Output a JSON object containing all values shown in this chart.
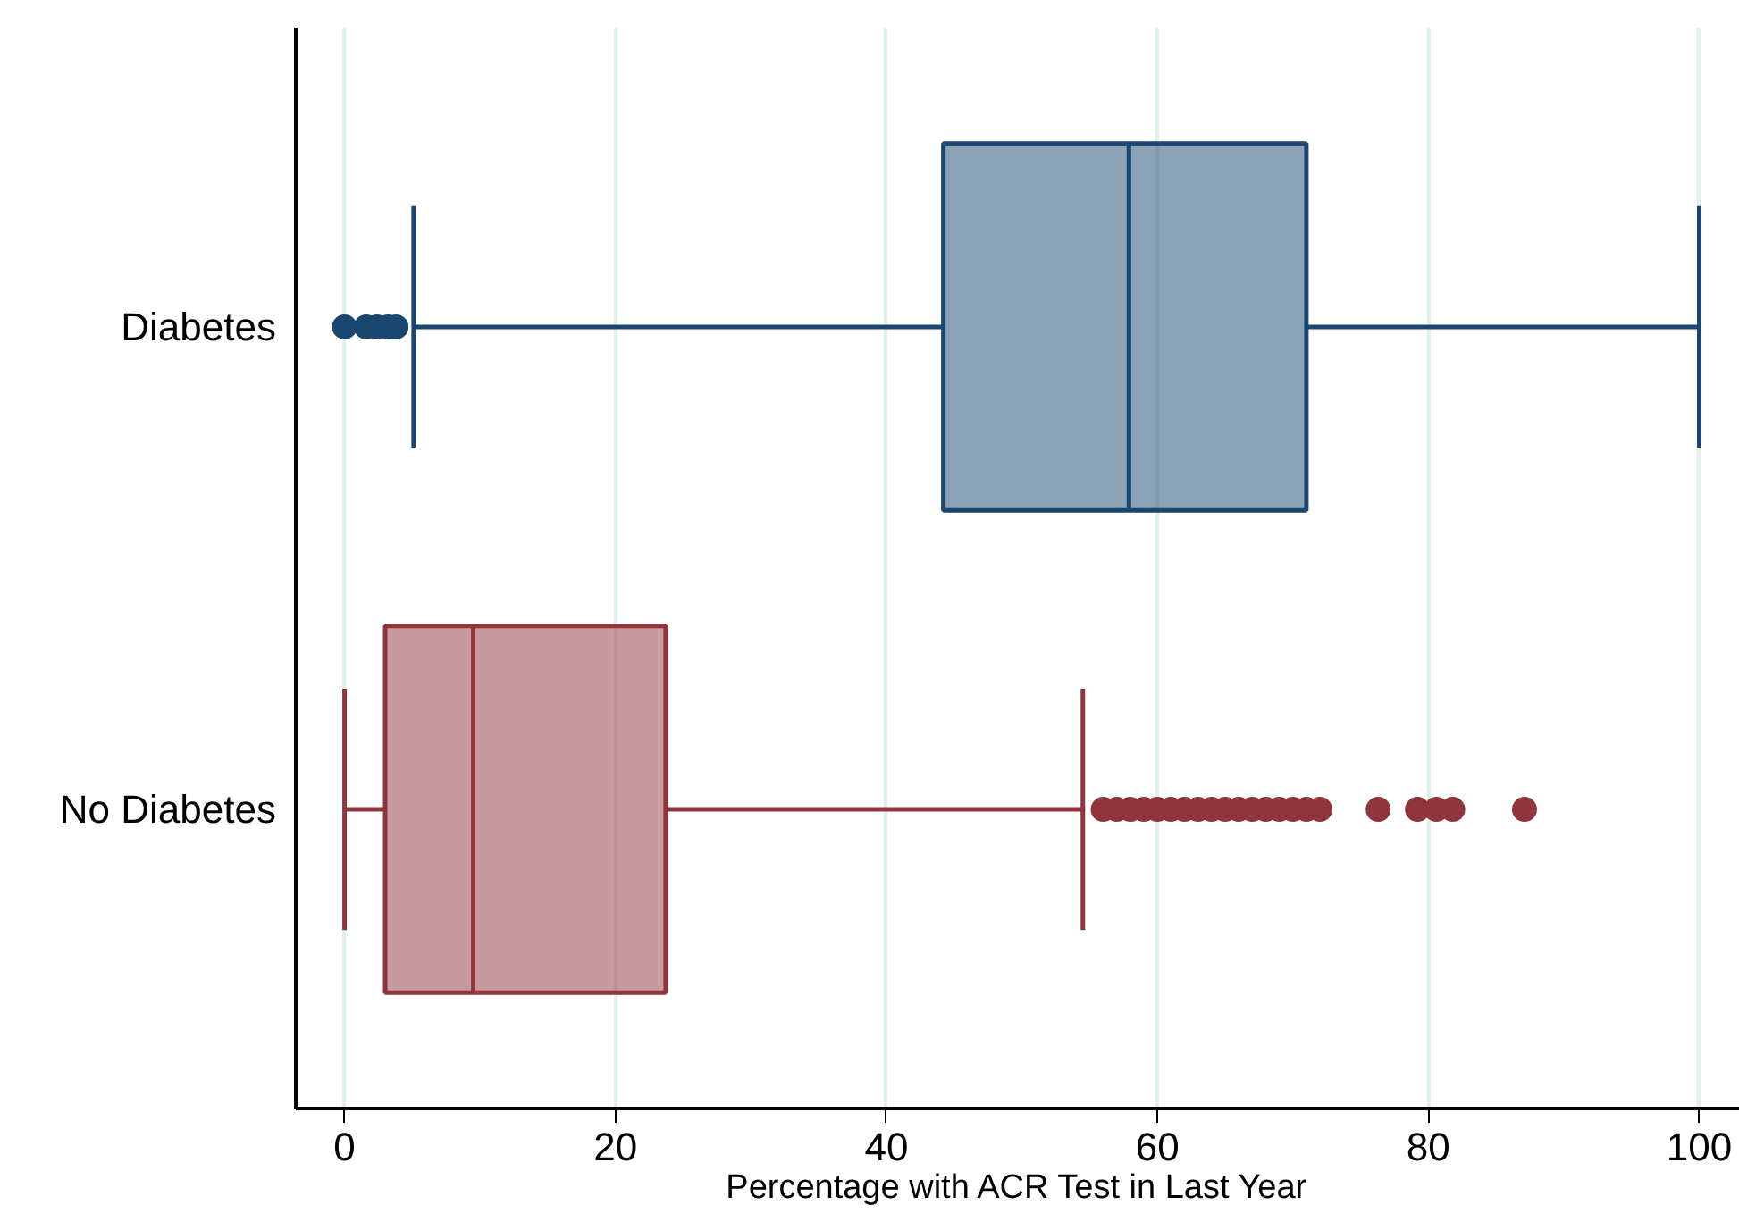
{
  "chart_data": {
    "type": "box",
    "orientation": "horizontal",
    "xlabel": "Percentage with ACR Test in Last Year",
    "categories": [
      "Diabetes",
      "No Diabetes"
    ],
    "colors": [
      "#1a476f",
      "#90353b"
    ],
    "boxes": [
      {
        "low": 5.1,
        "q1": 44.2,
        "median": 57.9,
        "q3": 71.0,
        "high": 100,
        "outliers": [
          0,
          1.6,
          2.4,
          3.2,
          3.8
        ]
      },
      {
        "low": 0,
        "q1": 3.0,
        "median": 9.5,
        "q3": 23.7,
        "high": 54.5,
        "outliers": [
          56,
          57,
          58,
          59,
          60,
          61,
          62,
          63,
          64,
          65,
          66,
          67,
          68,
          69,
          70,
          71,
          72,
          76.3,
          79.2,
          80.6,
          81.8,
          87.1
        ]
      }
    ],
    "xlim": [
      -3.6,
      103
    ],
    "xticks": [
      0,
      20,
      40,
      60,
      80,
      100
    ],
    "grid": "x",
    "marker": "circle"
  }
}
